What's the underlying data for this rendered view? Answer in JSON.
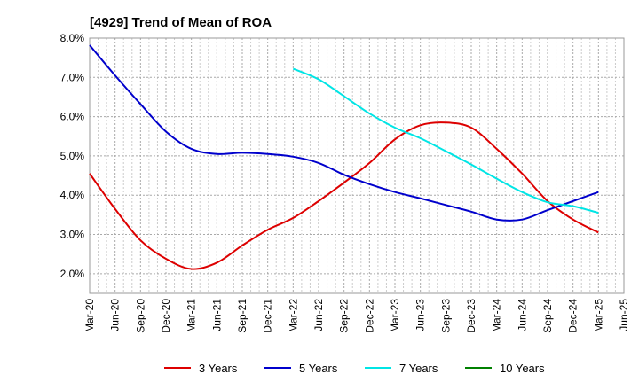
{
  "title": "[4929]  Trend of Mean of ROA",
  "chart_data": {
    "type": "line",
    "title": "[4929]  Trend of Mean of ROA",
    "xlabel": "",
    "ylabel": "",
    "x": [
      "Mar-20",
      "Jun-20",
      "Sep-20",
      "Dec-20",
      "Mar-21",
      "Jun-21",
      "Sep-21",
      "Dec-21",
      "Mar-22",
      "Jun-22",
      "Sep-22",
      "Dec-22",
      "Mar-23",
      "Jun-23",
      "Sep-23",
      "Dec-23",
      "Mar-24",
      "Jun-24",
      "Sep-24",
      "Dec-24",
      "Mar-25",
      "Jun-25"
    ],
    "ylim": [
      1.5,
      8.0
    ],
    "yticks": [
      2.0,
      3.0,
      4.0,
      5.0,
      6.0,
      7.0,
      8.0
    ],
    "ytick_labels": [
      "2.0%",
      "3.0%",
      "4.0%",
      "5.0%",
      "6.0%",
      "7.0%",
      "8.0%"
    ],
    "grid": true,
    "legend_position": "bottom",
    "series": [
      {
        "name": "3 Years",
        "color": "#dd0000",
        "values": [
          4.55,
          3.65,
          2.85,
          2.38,
          2.12,
          2.28,
          2.72,
          3.12,
          3.42,
          3.85,
          4.32,
          4.82,
          5.42,
          5.78,
          5.85,
          5.72,
          5.18,
          4.55,
          3.85,
          3.38,
          3.05,
          null
        ]
      },
      {
        "name": "5 Years",
        "color": "#0000cc",
        "values": [
          7.82,
          7.05,
          6.32,
          5.62,
          5.18,
          5.05,
          5.08,
          5.05,
          4.98,
          4.82,
          4.52,
          4.28,
          4.08,
          3.92,
          3.75,
          3.58,
          3.38,
          3.38,
          3.62,
          3.85,
          4.08,
          null
        ]
      },
      {
        "name": "7 Years",
        "color": "#00e5e5",
        "values": [
          null,
          null,
          null,
          null,
          null,
          null,
          null,
          null,
          7.22,
          6.95,
          6.52,
          6.08,
          5.72,
          5.45,
          5.12,
          4.78,
          4.42,
          4.08,
          3.82,
          3.72,
          3.55,
          null
        ]
      },
      {
        "name": "10 Years",
        "color": "#008000",
        "values": [
          null,
          null,
          null,
          null,
          null,
          null,
          null,
          null,
          null,
          null,
          null,
          null,
          null,
          null,
          null,
          null,
          null,
          null,
          null,
          null,
          null,
          null
        ]
      }
    ]
  }
}
